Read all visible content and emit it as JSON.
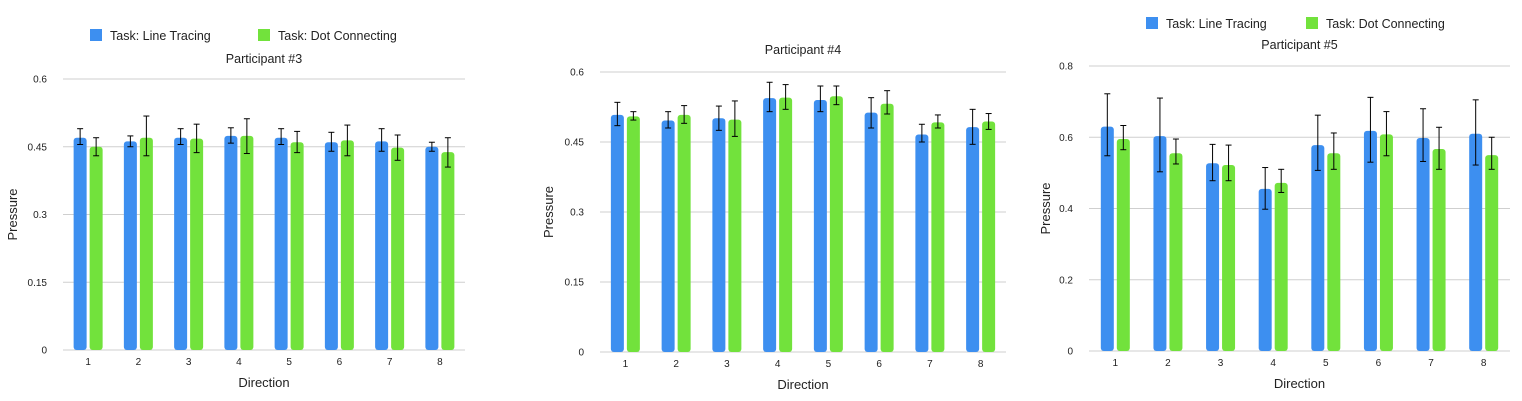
{
  "chart_data": [
    {
      "type": "bar",
      "title": "Participant #3",
      "xlabel": "Direction",
      "ylabel": "Pressure",
      "categories": [
        "1",
        "2",
        "3",
        "4",
        "5",
        "6",
        "7",
        "8"
      ],
      "ylim": [
        0,
        0.6
      ],
      "yticks": [
        "0",
        "0.15",
        "0.3",
        "0.45",
        "0.6"
      ],
      "ytick_values": [
        0,
        0.15,
        0.3,
        0.45,
        0.6
      ],
      "grid": true,
      "legend_position": "top-left",
      "series": [
        {
          "name": "Task: Line Tracing",
          "color": "#3d8ff0",
          "values": [
            0.47,
            0.462,
            0.47,
            0.474,
            0.47,
            0.46,
            0.462,
            0.45
          ],
          "err_low": [
            0.455,
            0.45,
            0.455,
            0.458,
            0.455,
            0.44,
            0.44,
            0.44
          ],
          "err_high": [
            0.49,
            0.474,
            0.49,
            0.492,
            0.49,
            0.482,
            0.49,
            0.46
          ]
        },
        {
          "name": "Task: Dot Connecting",
          "color": "#72e23c",
          "values": [
            0.45,
            0.47,
            0.468,
            0.474,
            0.46,
            0.464,
            0.448,
            0.438
          ],
          "err_low": [
            0.43,
            0.43,
            0.437,
            0.435,
            0.437,
            0.43,
            0.42,
            0.405
          ],
          "err_high": [
            0.47,
            0.518,
            0.5,
            0.512,
            0.484,
            0.498,
            0.476,
            0.47
          ]
        }
      ]
    },
    {
      "type": "bar",
      "title": "Participant #4",
      "xlabel": "Direction",
      "ylabel": "Pressure",
      "categories": [
        "1",
        "2",
        "3",
        "4",
        "5",
        "6",
        "7",
        "8"
      ],
      "ylim": [
        0,
        0.6
      ],
      "yticks": [
        "0",
        "0.15",
        "0.3",
        "0.45",
        "0.6"
      ],
      "ytick_values": [
        0,
        0.15,
        0.3,
        0.45,
        0.6
      ],
      "grid": true,
      "series": [
        {
          "name": "Task: Line Tracing",
          "color": "#3d8ff0",
          "values": [
            0.508,
            0.496,
            0.501,
            0.544,
            0.54,
            0.513,
            0.466,
            0.482
          ],
          "err_low": [
            0.485,
            0.48,
            0.475,
            0.515,
            0.515,
            0.48,
            0.45,
            0.445
          ],
          "err_high": [
            0.535,
            0.515,
            0.527,
            0.578,
            0.57,
            0.545,
            0.488,
            0.52
          ]
        },
        {
          "name": "Task: Dot Connecting",
          "color": "#72e23c",
          "values": [
            0.505,
            0.508,
            0.498,
            0.545,
            0.548,
            0.532,
            0.492,
            0.494
          ],
          "err_low": [
            0.497,
            0.49,
            0.462,
            0.52,
            0.53,
            0.51,
            0.48,
            0.477
          ],
          "err_high": [
            0.515,
            0.528,
            0.538,
            0.573,
            0.57,
            0.56,
            0.508,
            0.511
          ]
        }
      ]
    },
    {
      "type": "bar",
      "title": "Participant #5",
      "xlabel": "Direction",
      "ylabel": "Pressure",
      "categories": [
        "1",
        "2",
        "3",
        "4",
        "5",
        "6",
        "7",
        "8"
      ],
      "ylim": [
        0,
        0.8
      ],
      "yticks": [
        "0",
        "0.2",
        "0.4",
        "0.6",
        "0.8"
      ],
      "ytick_values": [
        0,
        0.2,
        0.4,
        0.6,
        0.8
      ],
      "grid": true,
      "legend_position": "top-center",
      "series": [
        {
          "name": "Task: Line Tracing",
          "color": "#3d8ff0",
          "values": [
            0.63,
            0.603,
            0.527,
            0.455,
            0.578,
            0.618,
            0.598,
            0.61
          ],
          "err_low": [
            0.548,
            0.503,
            0.478,
            0.398,
            0.507,
            0.53,
            0.532,
            0.522
          ],
          "err_high": [
            0.722,
            0.71,
            0.58,
            0.515,
            0.662,
            0.712,
            0.68,
            0.705
          ]
        },
        {
          "name": "Task: Dot Connecting",
          "color": "#72e23c",
          "values": [
            0.595,
            0.555,
            0.522,
            0.472,
            0.555,
            0.608,
            0.567,
            0.55
          ],
          "err_low": [
            0.565,
            0.525,
            0.478,
            0.445,
            0.51,
            0.548,
            0.51,
            0.51
          ],
          "err_high": [
            0.633,
            0.595,
            0.578,
            0.51,
            0.612,
            0.672,
            0.628,
            0.6
          ]
        }
      ]
    }
  ],
  "legend": {
    "line_tracing_label": "Task: Line Tracing",
    "dot_connecting_label": "Task: Dot Connecting",
    "line_tracing_color": "#3d8ff0",
    "dot_connecting_color": "#72e23c"
  }
}
